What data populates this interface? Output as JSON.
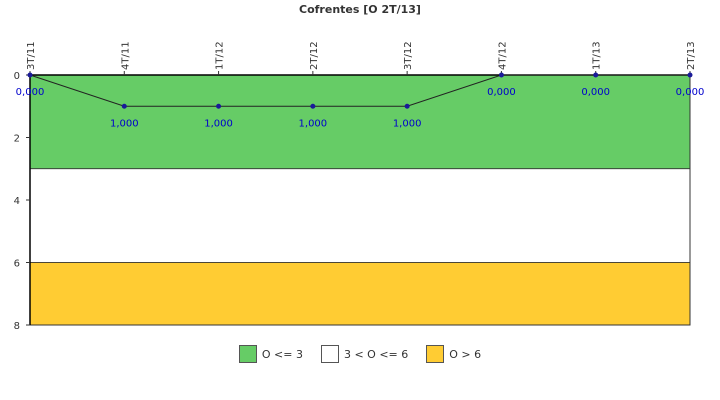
{
  "chart_data": {
    "type": "line",
    "title": "Cofrentes [O 2T/13]",
    "categories": [
      "3T/11",
      "4T/11",
      "1T/12",
      "2T/12",
      "3T/12",
      "4T/12",
      "1T/13",
      "2T/13"
    ],
    "series": [
      {
        "values": [
          0,
          1,
          1,
          1,
          1,
          0,
          0,
          0
        ],
        "labels": [
          "0,000",
          "1,000",
          "1,000",
          "1,000",
          "1,000",
          "0,000",
          "0,000",
          "0,000"
        ],
        "color": "#1a1a99"
      }
    ],
    "y_ticks": [
      0,
      2,
      4,
      6,
      8
    ],
    "ylim": [
      0,
      8
    ],
    "y_inverted": true,
    "bands": [
      {
        "from": 0,
        "to": 3,
        "color": "#66cc66",
        "label": "O <= 3"
      },
      {
        "from": 3,
        "to": 6,
        "color": "#ffffff",
        "label": "3 < O <= 6"
      },
      {
        "from": 6,
        "to": 8,
        "color": "#ffcc33",
        "label": "O > 6"
      }
    ],
    "legend_position": "bottom-center"
  }
}
